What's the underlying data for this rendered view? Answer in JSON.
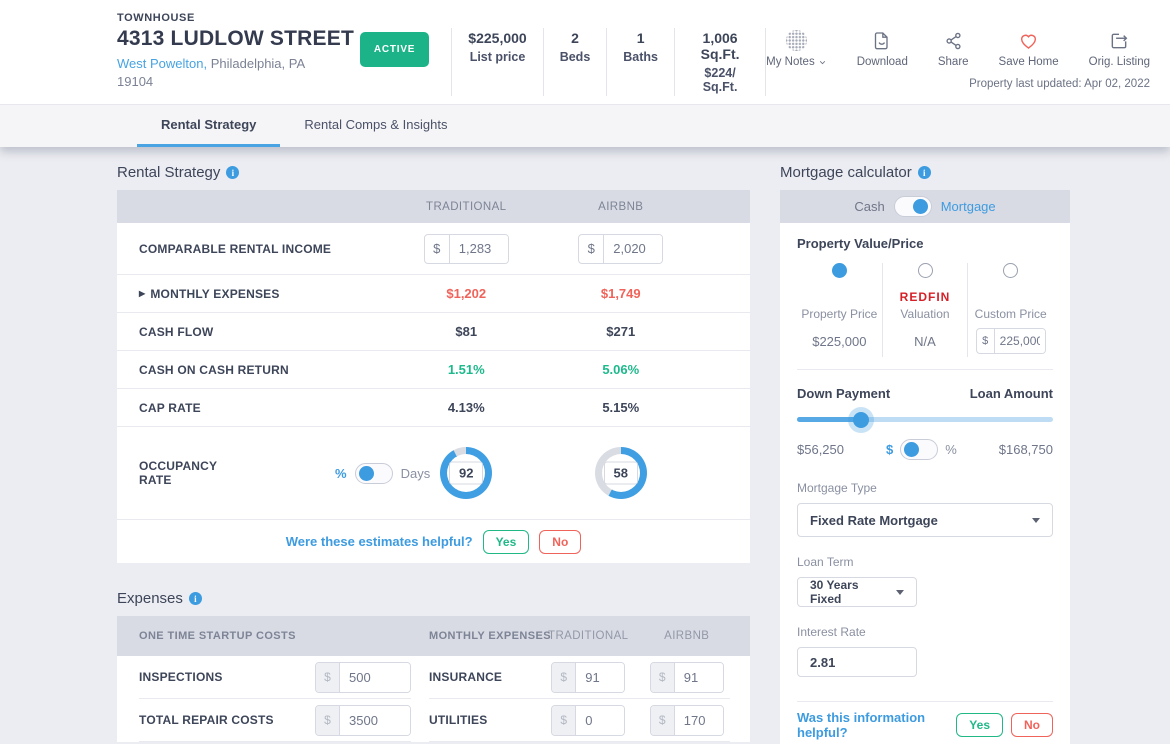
{
  "colors": {
    "accent_blue": "#3F9FE2",
    "track_gray": "#D9DCE3",
    "green": "#1DB389",
    "red": "#F0635A",
    "redfin_red": "#D62027"
  },
  "header": {
    "property_type": "TOWNHOUSE",
    "address": "4313 LUDLOW STREET",
    "neighborhood": "West Powelton,",
    "city_state": " Philadelphia, PA",
    "zip": "19104",
    "status_badge": "ACTIVE",
    "stats": [
      {
        "value": "$225,000",
        "label": "List price"
      },
      {
        "value": "2",
        "label": "Beds"
      },
      {
        "value": "1",
        "label": "Baths"
      },
      {
        "value": "1,006 Sq.Ft.",
        "label": "$224/ Sq.Ft."
      }
    ],
    "actions": {
      "my_notes": "My Notes",
      "download": "Download",
      "share": "Share",
      "save_home": "Save Home",
      "orig_listing": "Orig. Listing"
    },
    "last_updated": "Property last updated: Apr 02, 2022"
  },
  "tabs": [
    {
      "label": "Rental Strategy"
    },
    {
      "label": "Rental Comps & Insights"
    }
  ],
  "rental_strategy": {
    "title": "Rental Strategy",
    "columns": [
      "TRADITIONAL",
      "AIRBNB"
    ],
    "expander": "▶",
    "currency": "$",
    "income": {
      "label": "COMPARABLE RENTAL INCOME",
      "traditional": "1,283",
      "airbnb": "2,020"
    },
    "monthly_expenses": {
      "label": "MONTHLY EXPENSES",
      "traditional": "$1,202",
      "airbnb": "$1,749"
    },
    "cash_flow": {
      "label": "CASH FLOW",
      "traditional": "$81",
      "airbnb": "$271"
    },
    "cash_on_cash": {
      "label": "CASH ON CASH RETURN",
      "traditional": "1.51%",
      "airbnb": "5.06%"
    },
    "cap_rate": {
      "label": "CAP RATE",
      "traditional": "4.13%",
      "airbnb": "5.15%"
    },
    "occupancy": {
      "label": "OCCUPANCY RATE",
      "toggle_left": "%",
      "toggle_right": "Days",
      "traditional": 92,
      "airbnb": 58
    },
    "feedback": {
      "question": "Were these estimates helpful?",
      "yes": "Yes",
      "no": "No"
    }
  },
  "expenses": {
    "title": "Expenses",
    "currency": "$",
    "startup": {
      "header": "ONE TIME STARTUP COSTS",
      "rows": [
        {
          "label": "INSPECTIONS",
          "value": "500"
        },
        {
          "label": "TOTAL REPAIR COSTS",
          "value": "3500"
        }
      ]
    },
    "monthly": {
      "header": "MONTHLY EXPENSES",
      "col_traditional": "TRADITIONAL",
      "col_airbnb": "AIRBNB",
      "rows": [
        {
          "label": "INSURANCE",
          "traditional": "91",
          "airbnb": "91"
        },
        {
          "label": "UTILITIES",
          "traditional": "0",
          "airbnb": "170"
        }
      ]
    }
  },
  "mortgage": {
    "title": "Mortgage calculator",
    "payment_toggle": {
      "left": "Cash",
      "right": "Mortgage"
    },
    "property_value": {
      "label": "Property Value/Price",
      "currency": "$",
      "options": [
        {
          "label": "Property Price",
          "value": "$225,000"
        },
        {
          "brand": "REDFIN",
          "label": "Valuation",
          "value": "N/A"
        },
        {
          "label": "Custom Price",
          "input_value": "225,000"
        }
      ]
    },
    "down_payment": {
      "label": "Down Payment",
      "loan_label": "Loan Amount",
      "amount": "$56,250",
      "loan_amount": "$168,750",
      "toggle_left": "$",
      "toggle_right": "%",
      "percent": 25
    },
    "mortgage_type": {
      "label": "Mortgage Type",
      "value": "Fixed Rate Mortgage"
    },
    "loan_term": {
      "label": "Loan Term",
      "value": "30 Years Fixed"
    },
    "interest_rate": {
      "label": "Interest Rate",
      "value": "2.81"
    },
    "feedback": {
      "question": "Was this information helpful?",
      "yes": "Yes",
      "no": "No"
    }
  }
}
